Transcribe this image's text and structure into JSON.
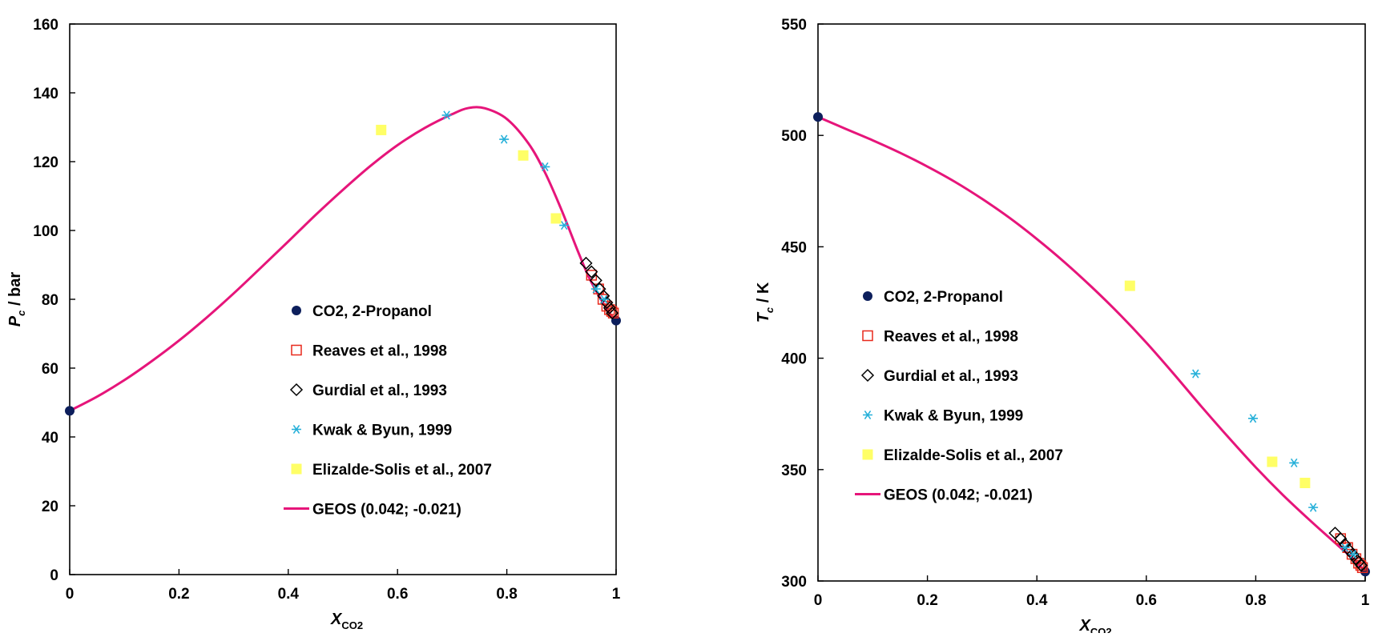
{
  "chart_data": [
    {
      "type": "scatter",
      "title": "",
      "xlabel": "X",
      "xlabel_sub": "CO2",
      "ylabel": "P",
      "ylabel_sub": "c",
      "ylabel_unit": " / bar",
      "xlim": [
        0,
        1
      ],
      "ylim": [
        0,
        160
      ],
      "xticks": [
        0,
        0.2,
        0.4,
        0.6,
        0.8,
        1
      ],
      "xtick_labels": [
        "0",
        "0.2",
        "0.4",
        "0.6",
        "0.8",
        "1"
      ],
      "yticks": [
        0,
        20,
        40,
        60,
        80,
        100,
        120,
        140,
        160
      ],
      "ytick_labels": [
        "0",
        "20",
        "40",
        "60",
        "80",
        "100",
        "120",
        "140",
        "160"
      ],
      "grid": false,
      "legend_position": "center",
      "series": [
        {
          "name": "CO2, 2-Propanol",
          "marker": "filled-circle",
          "color": "#0d1f5c",
          "x": [
            0,
            1
          ],
          "y": [
            47.6,
            73.8
          ]
        },
        {
          "name": "Reaves et al., 1998",
          "marker": "open-square",
          "color": "#e8291c",
          "x": [
            0.955,
            0.968,
            0.976,
            0.983,
            0.988,
            0.992,
            0.995
          ],
          "y": [
            87,
            83,
            80,
            78,
            77,
            76.5,
            76
          ]
        },
        {
          "name": "Gurdial et al., 1993",
          "marker": "open-diamond",
          "color": "#000000",
          "x": [
            0.945,
            0.955,
            0.963,
            0.97,
            0.977,
            0.983,
            0.988,
            0.993
          ],
          "y": [
            90.5,
            88,
            85.5,
            83,
            81,
            79,
            77.5,
            76
          ]
        },
        {
          "name": "Kwak & Byun, 1999",
          "marker": "asterisk",
          "color": "#26b0d9",
          "x": [
            0.69,
            0.795,
            0.87,
            0.905,
            0.963,
            0.978
          ],
          "y": [
            133.5,
            126.5,
            118.5,
            101.5,
            83,
            80
          ]
        },
        {
          "name": "Elizalde-Solis et al., 2007",
          "marker": "filled-square",
          "color": "#ffff66",
          "x": [
            0.57,
            0.83,
            0.89
          ],
          "y": [
            129.2,
            121.8,
            103.5
          ]
        },
        {
          "name": "GEOS (0.042; -0.021)",
          "marker": "line",
          "color": "#e6157a",
          "x": [
            0,
            0.05,
            0.1,
            0.15,
            0.2,
            0.25,
            0.3,
            0.35,
            0.4,
            0.45,
            0.5,
            0.55,
            0.6,
            0.65,
            0.7,
            0.73,
            0.76,
            0.8,
            0.84,
            0.87,
            0.9,
            0.93,
            0.95,
            0.97,
            0.99,
            1
          ],
          "y": [
            47.6,
            51.7,
            56.5,
            62,
            68,
            74.6,
            81.7,
            89.2,
            96.8,
            104.5,
            111.8,
            118.7,
            124.8,
            129.8,
            133.8,
            135.6,
            135.5,
            132.4,
            125.2,
            116.8,
            106,
            94,
            86.5,
            80.6,
            75.5,
            73.8
          ]
        }
      ]
    },
    {
      "type": "scatter",
      "title": "",
      "xlabel": "X",
      "xlabel_sub": "CO2",
      "ylabel": "T",
      "ylabel_sub": "c",
      "ylabel_unit": " / K",
      "xlim": [
        0,
        1
      ],
      "ylim": [
        300,
        550
      ],
      "xticks": [
        0,
        0.2,
        0.4,
        0.6,
        0.8,
        1
      ],
      "xtick_labels": [
        "0",
        "0.2",
        "0.4",
        "0.6",
        "0.8",
        "1"
      ],
      "yticks": [
        300,
        350,
        400,
        450,
        500,
        550
      ],
      "ytick_labels": [
        "300",
        "350",
        "400",
        "450",
        "500",
        "550"
      ],
      "grid": false,
      "legend_position": "center-left",
      "series": [
        {
          "name": "CO2, 2-Propanol",
          "marker": "filled-circle",
          "color": "#0d1f5c",
          "x": [
            0,
            1
          ],
          "y": [
            508.3,
            304.2
          ]
        },
        {
          "name": "Reaves et al., 1998",
          "marker": "open-square",
          "color": "#e8291c",
          "x": [
            0.955,
            0.968,
            0.976,
            0.983,
            0.988,
            0.992,
            0.995
          ],
          "y": [
            319,
            315,
            312,
            310,
            308,
            307,
            306
          ]
        },
        {
          "name": "Gurdial et al., 1993",
          "marker": "open-diamond",
          "color": "#000000",
          "x": [
            0.945,
            0.955,
            0.963,
            0.97,
            0.977,
            0.983,
            0.988,
            0.993
          ],
          "y": [
            321.5,
            319,
            316.5,
            314,
            312,
            310,
            308.5,
            307
          ]
        },
        {
          "name": "Kwak & Byun, 1999",
          "marker": "asterisk",
          "color": "#26b0d9",
          "x": [
            0.69,
            0.795,
            0.87,
            0.905,
            0.963,
            0.978
          ],
          "y": [
            393,
            373,
            353,
            333,
            315,
            312
          ]
        },
        {
          "name": "Elizalde-Solis et al., 2007",
          "marker": "filled-square",
          "color": "#ffff66",
          "x": [
            0.57,
            0.83,
            0.89
          ],
          "y": [
            432.5,
            353.5,
            344
          ]
        },
        {
          "name": "GEOS (0.042; -0.021)",
          "marker": "line",
          "color": "#e6157a",
          "x": [
            0,
            0.05,
            0.1,
            0.15,
            0.2,
            0.25,
            0.3,
            0.35,
            0.4,
            0.45,
            0.5,
            0.55,
            0.6,
            0.65,
            0.7,
            0.75,
            0.8,
            0.85,
            0.9,
            0.95,
            0.98,
            1
          ],
          "y": [
            508.3,
            503,
            497.8,
            492.2,
            486,
            479.2,
            471.5,
            463,
            453.5,
            443.2,
            432,
            420,
            407,
            393,
            378.5,
            364.5,
            351,
            338.5,
            327,
            316,
            309.5,
            304.2
          ]
        }
      ]
    }
  ]
}
